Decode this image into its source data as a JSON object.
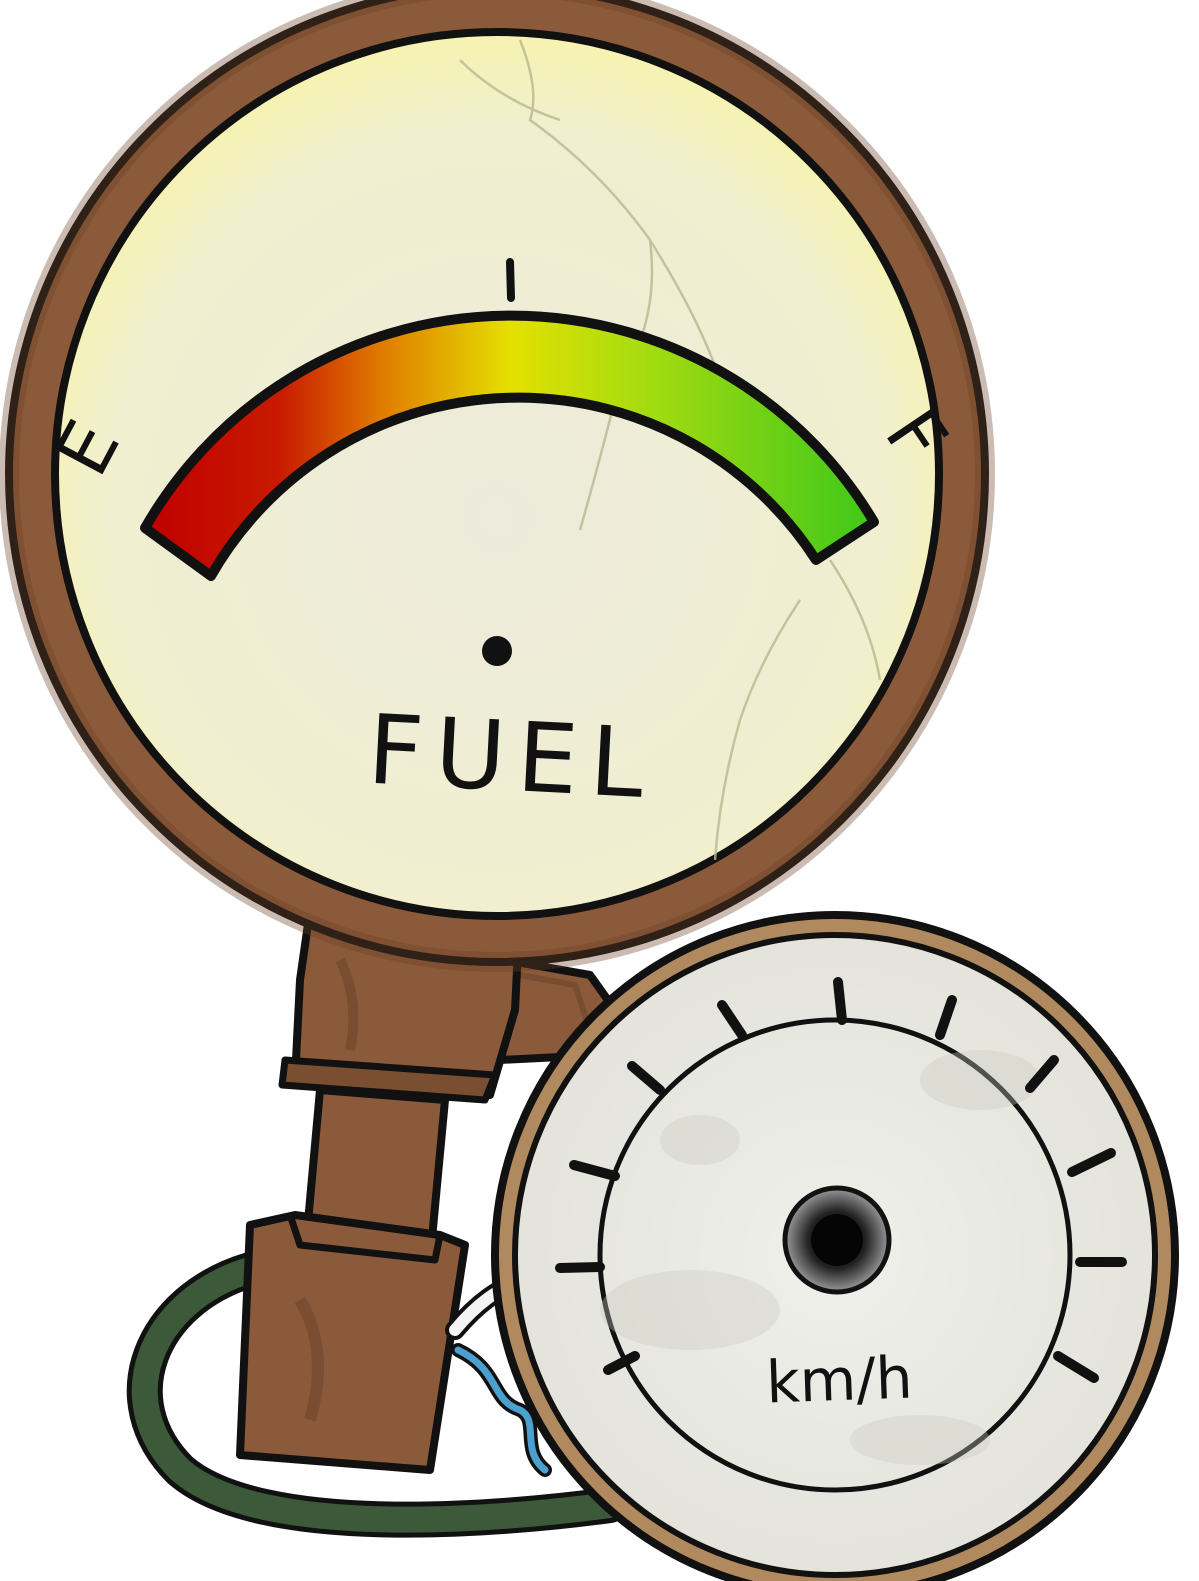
{
  "fuel_gauge": {
    "label": "FUEL",
    "empty_label": "E",
    "full_label": "F",
    "colors": {
      "rim": "#8a5a3a",
      "face": "#f4f1d6",
      "arc_empty": "#c00000",
      "arc_mid": "#e4e000",
      "arc_full": "#40c81a"
    }
  },
  "speedometer": {
    "unit_label": "km/h",
    "colors": {
      "rim": "#b08a5e",
      "face": "#eeeeea",
      "hub": "#111111"
    }
  },
  "stand": {
    "colors": {
      "pipe": "#8a5a3a",
      "cable": "#3c5a3a",
      "wire": "#4ca0d0"
    }
  }
}
